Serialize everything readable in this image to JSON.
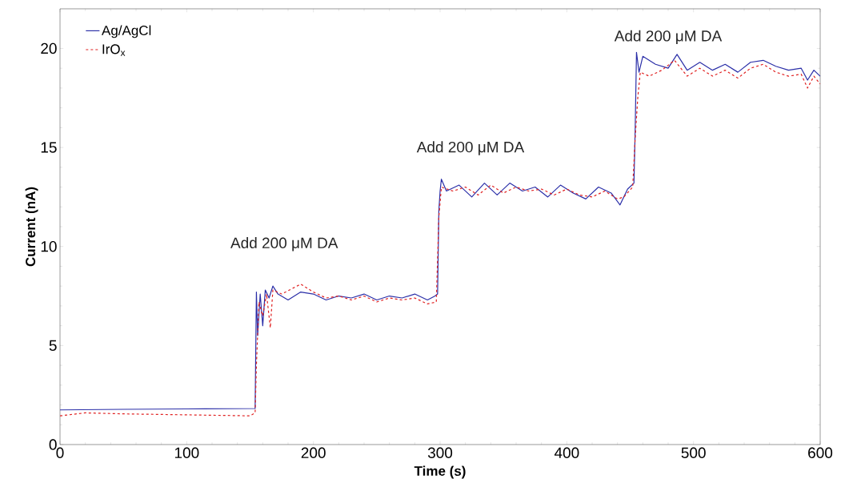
{
  "chart_data": {
    "type": "line",
    "xlabel": "Time (s)",
    "ylabel": "Current (nA)",
    "xlim": [
      0,
      600
    ],
    "ylim": [
      0,
      22
    ],
    "xticks": [
      0,
      100,
      200,
      300,
      400,
      500,
      600
    ],
    "yticks": [
      0,
      5,
      10,
      15,
      20
    ],
    "legend": "top left",
    "grid": false,
    "annotations": [
      "Add 200 μM DA",
      "Add 200 μM DA",
      "Add 200 μM DA"
    ],
    "series": [
      {
        "name": "Ag/AgCl",
        "color": "#2b2fa8",
        "line_style": "solid",
        "x": [
          0,
          50,
          100,
          154,
          155,
          156,
          158,
          160,
          162,
          165,
          168,
          172,
          180,
          190,
          200,
          210,
          220,
          230,
          240,
          250,
          260,
          270,
          280,
          290,
          296,
          298,
          299,
          300,
          301,
          305,
          315,
          325,
          335,
          345,
          355,
          365,
          375,
          385,
          395,
          405,
          415,
          425,
          435,
          442,
          448,
          453,
          454,
          455,
          457,
          460,
          470,
          480,
          487,
          495,
          505,
          515,
          525,
          535,
          545,
          555,
          565,
          575,
          585,
          590,
          595,
          600
        ],
        "values": [
          1.75,
          1.78,
          1.8,
          1.82,
          7.7,
          5.5,
          7.6,
          6.0,
          7.8,
          7.4,
          8.0,
          7.6,
          7.3,
          7.7,
          7.6,
          7.3,
          7.5,
          7.4,
          7.6,
          7.3,
          7.5,
          7.4,
          7.6,
          7.3,
          7.5,
          7.6,
          11.8,
          12.8,
          13.4,
          12.8,
          13.1,
          12.5,
          13.2,
          12.6,
          13.2,
          12.8,
          13.0,
          12.5,
          13.1,
          12.7,
          12.4,
          13.0,
          12.7,
          12.1,
          12.9,
          13.2,
          16.0,
          19.8,
          18.8,
          19.6,
          19.2,
          19.0,
          19.7,
          18.9,
          19.3,
          18.9,
          19.2,
          18.8,
          19.3,
          19.4,
          19.1,
          18.9,
          19.0,
          18.4,
          18.9,
          18.6
        ]
      },
      {
        "name": "IrO$_{x}$",
        "color": "#e02020",
        "line_style": "dashed",
        "x": [
          0,
          20,
          50,
          100,
          150,
          154,
          155,
          157,
          160,
          163,
          166,
          168,
          175,
          190,
          200,
          210,
          220,
          230,
          240,
          250,
          260,
          270,
          280,
          290,
          297,
          299,
          301,
          310,
          320,
          330,
          340,
          350,
          360,
          370,
          380,
          390,
          400,
          410,
          420,
          430,
          440,
          445,
          452,
          454,
          456,
          458,
          465,
          475,
          485,
          495,
          505,
          515,
          525,
          535,
          545,
          555,
          565,
          575,
          585,
          590,
          595,
          600
        ],
        "values": [
          1.45,
          1.6,
          1.55,
          1.5,
          1.45,
          1.6,
          4.0,
          7.2,
          6.5,
          7.6,
          5.9,
          7.8,
          7.6,
          8.1,
          7.7,
          7.4,
          7.5,
          7.3,
          7.5,
          7.2,
          7.4,
          7.3,
          7.4,
          7.1,
          7.2,
          11.5,
          13.0,
          12.8,
          13.0,
          12.6,
          13.1,
          12.7,
          13.0,
          12.8,
          12.9,
          12.6,
          12.9,
          12.6,
          12.5,
          12.8,
          12.4,
          12.5,
          13.0,
          15.5,
          17.5,
          18.8,
          18.6,
          18.9,
          19.4,
          18.6,
          19.0,
          18.6,
          18.9,
          18.5,
          19.0,
          19.2,
          18.8,
          18.6,
          18.7,
          18.0,
          18.6,
          18.2
        ]
      }
    ]
  }
}
